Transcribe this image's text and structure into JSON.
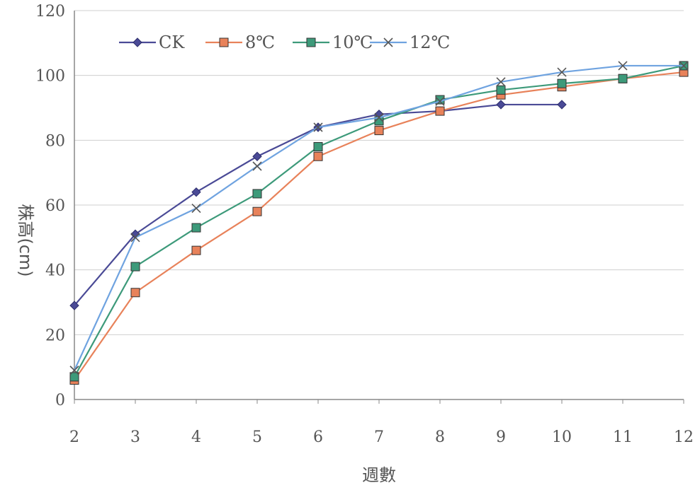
{
  "chart_data": {
    "type": "line",
    "title": "",
    "xlabel": "週數",
    "ylabel": "株高(cm)",
    "categories": [
      2,
      3,
      4,
      5,
      6,
      7,
      8,
      9,
      10,
      11,
      12
    ],
    "ylim": [
      0,
      120
    ],
    "yticks": [
      0,
      20,
      40,
      60,
      80,
      100,
      120
    ],
    "grid": true,
    "legend_position": "top-left",
    "series": [
      {
        "name": "CK",
        "color": "#4a4a96",
        "marker": "diamond",
        "values": [
          29,
          51,
          64,
          75,
          84,
          88,
          89,
          91,
          91,
          null,
          null
        ]
      },
      {
        "name": "8℃",
        "color": "#e8825a",
        "marker": "square",
        "values": [
          6,
          33,
          46,
          58,
          75,
          83,
          89,
          94,
          96.5,
          99,
          101
        ]
      },
      {
        "name": "10℃",
        "color": "#3d9a7a",
        "marker": "square",
        "values": [
          7,
          41,
          53,
          63.5,
          78,
          86,
          92.5,
          95.5,
          97.5,
          99,
          103
        ]
      },
      {
        "name": "12℃",
        "color": "#6fa3e0",
        "marker": "x",
        "values": [
          9,
          50,
          59,
          72,
          84,
          87,
          92,
          98,
          101,
          103,
          103
        ]
      }
    ]
  }
}
